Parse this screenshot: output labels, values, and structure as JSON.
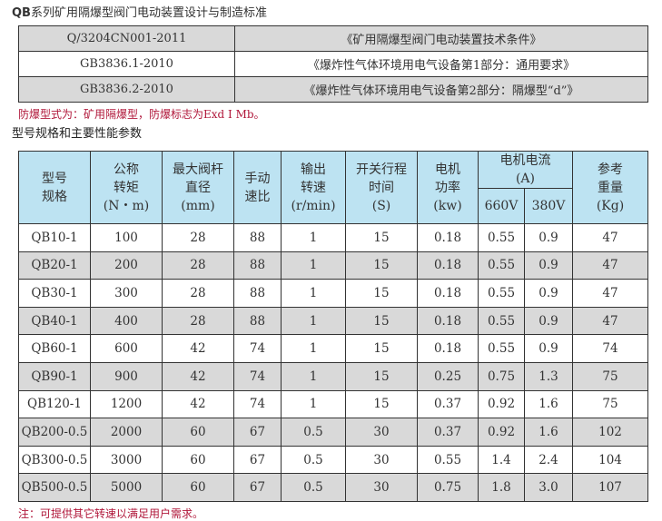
{
  "title_prefix": "QB",
  "title_rest": "系列矿用隔爆型阀门电动装置设计与制造标准",
  "standards": [
    {
      "code": "Q/3204CN001-2011",
      "name": "《矿用隔爆型阀门电动装置技术条件》"
    },
    {
      "code": "GB3836.1-2010",
      "name": "《爆炸性气体环境用电气设备第1部分：通用要求》"
    },
    {
      "code": "GB3836.2-2010",
      "name": "《爆炸性气体环境用电气设备第2部分：隔爆型“d”》"
    }
  ],
  "explosion_note": "防爆型式为：矿用隔爆型，防爆标志为Exd I  Mb。",
  "subtitle": "型号规格和主要性能参数",
  "headers": {
    "model": [
      "型号",
      "规格"
    ],
    "torque": [
      "公称",
      "转矩",
      "(N・m)"
    ],
    "stem": [
      "最大阀杆",
      "直径",
      "(mm)"
    ],
    "ratio": [
      "手动",
      "速比"
    ],
    "speed": [
      "输出",
      "转速",
      "(r/min)"
    ],
    "time": [
      "开关行程",
      "时间",
      "(S)"
    ],
    "power": [
      "电机",
      "功率",
      "(kw)"
    ],
    "current": [
      "电机电流",
      "(A)"
    ],
    "v660": "660V",
    "v380": "380V",
    "weight": [
      "参考",
      "重量",
      "(Kg)"
    ]
  },
  "rows": [
    [
      "QB10-1",
      "100",
      "28",
      "88",
      "1",
      "15",
      "0.18",
      "0.55",
      "0.9",
      "47"
    ],
    [
      "QB20-1",
      "200",
      "28",
      "88",
      "1",
      "15",
      "0.18",
      "0.55",
      "0.9",
      "47"
    ],
    [
      "QB30-1",
      "300",
      "28",
      "88",
      "1",
      "15",
      "0.18",
      "0.55",
      "0.9",
      "47"
    ],
    [
      "QB40-1",
      "400",
      "28",
      "88",
      "1",
      "15",
      "0.18",
      "0.55",
      "0.9",
      "47"
    ],
    [
      "QB60-1",
      "600",
      "42",
      "74",
      "1",
      "15",
      "0.18",
      "0.55",
      "0.9",
      "74"
    ],
    [
      "QB90-1",
      "900",
      "42",
      "74",
      "1",
      "15",
      "0.25",
      "0.75",
      "1.3",
      "75"
    ],
    [
      "QB120-1",
      "1200",
      "42",
      "74",
      "1",
      "15",
      "0.37",
      "0.92",
      "1.6",
      "75"
    ],
    [
      "QB200-0.5",
      "2000",
      "60",
      "67",
      "0.5",
      "30",
      "0.37",
      "0.92",
      "1.6",
      "102"
    ],
    [
      "QB300-0.5",
      "3000",
      "60",
      "67",
      "0.5",
      "30",
      "0.55",
      "1.4",
      "2.4",
      "104"
    ],
    [
      "QB500-0.5",
      "5000",
      "60",
      "67",
      "0.5",
      "30",
      "0.75",
      "1.8",
      "3.0",
      "107"
    ]
  ],
  "footnote": "注：可提供其它转速以满足用户需求。"
}
